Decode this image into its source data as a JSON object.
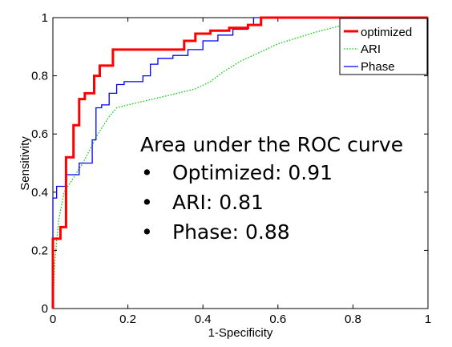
{
  "chart_data": {
    "type": "line",
    "xlabel": "1-Specificity",
    "ylabel": "Sensitivity",
    "xlim": [
      0,
      1
    ],
    "ylim": [
      0,
      1
    ],
    "x_ticks": [
      0,
      0.2,
      0.4,
      0.6,
      0.8,
      1
    ],
    "x_tick_labels": [
      "0",
      "0.2",
      "0.4",
      "0.6",
      "0.8",
      "1"
    ],
    "y_ticks": [
      0,
      0.2,
      0.4,
      0.6,
      0.8,
      1
    ],
    "y_tick_labels": [
      "0",
      "0.2",
      "0.4",
      "0.6",
      "0.8",
      "1"
    ],
    "legend_position": "top-right",
    "series": [
      {
        "name": "optimized",
        "color": "#ff0000",
        "style": "solid",
        "points": [
          [
            0,
            0
          ],
          [
            0,
            0.24
          ],
          [
            0.02,
            0.24
          ],
          [
            0.02,
            0.28
          ],
          [
            0.035,
            0.28
          ],
          [
            0.035,
            0.52
          ],
          [
            0.055,
            0.52
          ],
          [
            0.055,
            0.63
          ],
          [
            0.07,
            0.63
          ],
          [
            0.07,
            0.72
          ],
          [
            0.085,
            0.72
          ],
          [
            0.085,
            0.74
          ],
          [
            0.11,
            0.74
          ],
          [
            0.11,
            0.8
          ],
          [
            0.125,
            0.8
          ],
          [
            0.125,
            0.835
          ],
          [
            0.16,
            0.835
          ],
          [
            0.16,
            0.89
          ],
          [
            0.35,
            0.89
          ],
          [
            0.35,
            0.92
          ],
          [
            0.38,
            0.92
          ],
          [
            0.38,
            0.945
          ],
          [
            0.42,
            0.945
          ],
          [
            0.42,
            0.955
          ],
          [
            0.47,
            0.955
          ],
          [
            0.47,
            0.965
          ],
          [
            0.52,
            0.965
          ],
          [
            0.52,
            0.975
          ],
          [
            0.555,
            0.975
          ],
          [
            0.555,
            1
          ],
          [
            1,
            1
          ]
        ]
      },
      {
        "name": "ARI",
        "color": "#00cc00",
        "style": "dotted",
        "points": [
          [
            0,
            0
          ],
          [
            0.005,
            0.16
          ],
          [
            0.015,
            0.3
          ],
          [
            0.03,
            0.4
          ],
          [
            0.05,
            0.44
          ],
          [
            0.08,
            0.5
          ],
          [
            0.1,
            0.55
          ],
          [
            0.12,
            0.6
          ],
          [
            0.15,
            0.66
          ],
          [
            0.17,
            0.69
          ],
          [
            0.2,
            0.7
          ],
          [
            0.3,
            0.73
          ],
          [
            0.38,
            0.755
          ],
          [
            0.42,
            0.78
          ],
          [
            0.45,
            0.81
          ],
          [
            0.5,
            0.85
          ],
          [
            0.55,
            0.88
          ],
          [
            0.6,
            0.91
          ],
          [
            0.65,
            0.93
          ],
          [
            0.7,
            0.95
          ],
          [
            0.76,
            0.97
          ],
          [
            0.83,
            0.985
          ],
          [
            0.9,
            0.995
          ],
          [
            1,
            1
          ]
        ]
      },
      {
        "name": "Phase",
        "color": "#0000ff",
        "style": "solid",
        "points": [
          [
            0,
            0
          ],
          [
            0,
            0.38
          ],
          [
            0.01,
            0.38
          ],
          [
            0.01,
            0.42
          ],
          [
            0.035,
            0.42
          ],
          [
            0.035,
            0.46
          ],
          [
            0.07,
            0.46
          ],
          [
            0.07,
            0.5
          ],
          [
            0.105,
            0.5
          ],
          [
            0.105,
            0.58
          ],
          [
            0.115,
            0.58
          ],
          [
            0.115,
            0.69
          ],
          [
            0.13,
            0.69
          ],
          [
            0.13,
            0.7
          ],
          [
            0.15,
            0.7
          ],
          [
            0.15,
            0.74
          ],
          [
            0.17,
            0.74
          ],
          [
            0.17,
            0.77
          ],
          [
            0.19,
            0.77
          ],
          [
            0.19,
            0.78
          ],
          [
            0.24,
            0.78
          ],
          [
            0.24,
            0.8
          ],
          [
            0.26,
            0.8
          ],
          [
            0.26,
            0.84
          ],
          [
            0.28,
            0.84
          ],
          [
            0.28,
            0.86
          ],
          [
            0.32,
            0.86
          ],
          [
            0.32,
            0.87
          ],
          [
            0.36,
            0.87
          ],
          [
            0.36,
            0.89
          ],
          [
            0.4,
            0.89
          ],
          [
            0.4,
            0.92
          ],
          [
            0.44,
            0.92
          ],
          [
            0.44,
            0.94
          ],
          [
            0.48,
            0.94
          ],
          [
            0.48,
            0.96
          ],
          [
            0.52,
            0.96
          ],
          [
            0.52,
            0.975
          ],
          [
            0.535,
            0.975
          ],
          [
            0.535,
            1
          ],
          [
            1,
            1
          ]
        ]
      }
    ],
    "annotation": {
      "title": "Area under the ROC curve",
      "bullet": "•",
      "items": [
        "Optimized: 0.91",
        "ARI: 0.81",
        "Phase: 0.88"
      ]
    }
  }
}
